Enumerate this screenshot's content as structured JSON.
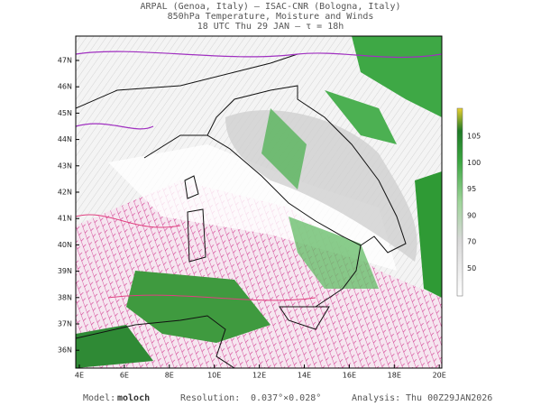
{
  "header": {
    "lines": [
      "ARPAL (Genoa, Italy)  –  ISAC-CNR (Bologna, Italy)",
      "850hPa Temperature, Moisture and Winds",
      "18 UTC Thu 29 JAN  –  τ = 18h"
    ]
  },
  "map": {
    "lat_labels": [
      "47N",
      "46N",
      "45N",
      "44N",
      "43N",
      "42N",
      "41N",
      "40N",
      "39N",
      "38N",
      "37N",
      "36N"
    ],
    "lon_labels": [
      "4E",
      "6E",
      "8E",
      "10E",
      "12E",
      "14E",
      "16E",
      "18E",
      "20E"
    ]
  },
  "colorbar": {
    "labels": [
      "105",
      "100",
      "95",
      "90",
      "70",
      "50"
    ]
  },
  "footer": {
    "model_label": "Model:",
    "model": "moloch",
    "resolution_label": "Resolution:",
    "resolution": "0.037°×0.028°",
    "analysis_label": "Analysis:",
    "analysis": "Thu 00Z29JAN2026"
  }
}
